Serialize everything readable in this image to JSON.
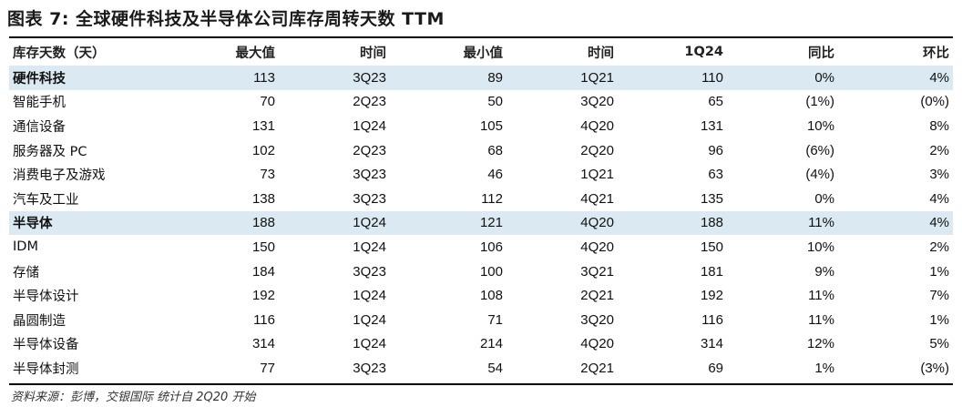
{
  "title": "图表 7: 全球硬件科技及半导体公司库存周转天数 TTM",
  "columns": [
    "库存天数（天）",
    "最大值",
    "时间",
    "最小值",
    "时间",
    "1Q24",
    "同比",
    "环比"
  ],
  "rows": [
    {
      "name": "硬件科技",
      "group": true,
      "values": [
        "113",
        "3Q23",
        "89",
        "1Q21",
        "110",
        "0%",
        "4%"
      ]
    },
    {
      "name": "智能手机",
      "group": false,
      "values": [
        "70",
        "2Q23",
        "50",
        "3Q20",
        "65",
        "(1%)",
        "(0%)"
      ]
    },
    {
      "name": "通信设备",
      "group": false,
      "values": [
        "131",
        "1Q24",
        "105",
        "4Q20",
        "131",
        "10%",
        "8%"
      ]
    },
    {
      "name": "服务器及 PC",
      "group": false,
      "values": [
        "102",
        "2Q23",
        "68",
        "2Q20",
        "96",
        "(6%)",
        "2%"
      ]
    },
    {
      "name": "消费电子及游戏",
      "group": false,
      "values": [
        "73",
        "3Q23",
        "46",
        "1Q21",
        "63",
        "(4%)",
        "3%"
      ]
    },
    {
      "name": "汽车及工业",
      "group": false,
      "values": [
        "138",
        "3Q23",
        "112",
        "4Q21",
        "135",
        "0%",
        "4%"
      ]
    },
    {
      "name": "半导体",
      "group": true,
      "values": [
        "188",
        "1Q24",
        "121",
        "4Q20",
        "188",
        "11%",
        "4%"
      ]
    },
    {
      "name": "IDM",
      "group": false,
      "values": [
        "150",
        "1Q24",
        "106",
        "4Q20",
        "150",
        "10%",
        "2%"
      ]
    },
    {
      "name": "存储",
      "group": false,
      "values": [
        "184",
        "3Q23",
        "100",
        "3Q21",
        "181",
        "9%",
        "1%"
      ]
    },
    {
      "name": "半导体设计",
      "group": false,
      "values": [
        "192",
        "1Q24",
        "108",
        "2Q21",
        "192",
        "11%",
        "7%"
      ]
    },
    {
      "name": "晶圆制造",
      "group": false,
      "values": [
        "116",
        "1Q24",
        "71",
        "3Q20",
        "116",
        "11%",
        "1%"
      ]
    },
    {
      "name": "半导体设备",
      "group": false,
      "values": [
        "314",
        "1Q24",
        "214",
        "4Q20",
        "314",
        "12%",
        "5%"
      ]
    },
    {
      "name": "半导体封测",
      "group": false,
      "values": [
        "77",
        "3Q23",
        "54",
        "2Q21",
        "69",
        "1%",
        "(3%)"
      ]
    }
  ],
  "source": "资料来源：彭博，交银国际  统计自 2Q20 开始"
}
